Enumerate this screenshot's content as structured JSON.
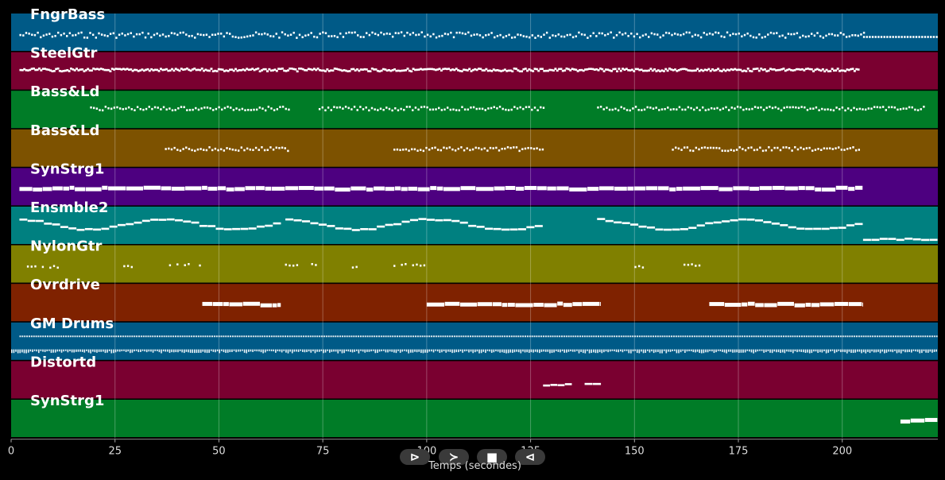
{
  "colors": {
    "blue": "#005a87",
    "crimson": "#7a0030",
    "green": "#007c27",
    "amber": "#7d5200",
    "purple": "#4d0080",
    "teal": "#008080",
    "olive": "#808000",
    "rust": "#7f2200",
    "background": "#000000",
    "note": "#ffffff"
  },
  "controls": {
    "play": "⊳",
    "forward": "≻",
    "stop": "■",
    "back": "⊲"
  },
  "chart_data": {
    "type": "piano-roll",
    "xlabel": "Temps (secondes)",
    "xlim": [
      0,
      223
    ],
    "xticks": [
      0,
      25,
      50,
      75,
      100,
      125,
      150,
      175,
      200
    ],
    "grid": true,
    "tracks": [
      {
        "name": "FngrBass",
        "color": "blue",
        "style": "dotted",
        "segments": [
          [
            2,
            205,
            0.55,
            0.3
          ],
          [
            205,
            223,
            0.6,
            0
          ]
        ],
        "row2": null
      },
      {
        "name": "SteelGtr",
        "color": "crimson",
        "style": "dense",
        "segments": [
          [
            2,
            204,
            0.45,
            0.15
          ]
        ],
        "row2": null
      },
      {
        "name": "Bass&Ld",
        "color": "green",
        "style": "dotted",
        "segments": [
          [
            19,
            67,
            0.45,
            0.2
          ],
          [
            74,
            128,
            0.45,
            0.2
          ],
          [
            141,
            220,
            0.45,
            0.2
          ]
        ],
        "row2": null
      },
      {
        "name": "Bass&Ld",
        "color": "amber",
        "style": "dotted",
        "segments": [
          [
            37,
            67,
            0.5,
            0.2
          ],
          [
            92,
            128,
            0.5,
            0.2
          ],
          [
            159,
            204,
            0.5,
            0.2
          ]
        ],
        "row2": null
      },
      {
        "name": "SynStrg1",
        "color": "purple",
        "style": "thick",
        "segments": [
          [
            2,
            205,
            0.5,
            0.1
          ]
        ],
        "row2": null
      },
      {
        "name": "Ensmble2",
        "color": "teal",
        "style": "line",
        "segments": [
          [
            2,
            65,
            0.45,
            0.55
          ],
          [
            66,
            128,
            0.45,
            0.55
          ],
          [
            141,
            205,
            0.45,
            0.55
          ],
          [
            205,
            223,
            0.85,
            0
          ]
        ],
        "row2": null
      },
      {
        "name": "NylonGtr",
        "color": "olive",
        "style": "sparse",
        "segments": [
          [
            2,
            12,
            0.55,
            0.1
          ],
          [
            27,
            30,
            0.55,
            0.1
          ],
          [
            38,
            46,
            0.5,
            0.1
          ],
          [
            65,
            74,
            0.5,
            0.1
          ],
          [
            82,
            84,
            0.55,
            0.1
          ],
          [
            92,
            100,
            0.5,
            0.1
          ],
          [
            150,
            152,
            0.55,
            0.1
          ],
          [
            160,
            168,
            0.5,
            0.1
          ]
        ],
        "row2": null
      },
      {
        "name": "Ovrdrive",
        "color": "rust",
        "style": "thick",
        "segments": [
          [
            46,
            65,
            0.5,
            0.1
          ],
          [
            100,
            142,
            0.5,
            0.1
          ],
          [
            168,
            205,
            0.5,
            0.1
          ]
        ],
        "row2": null
      },
      {
        "name": "GM Drums",
        "color": "blue",
        "style": "drums",
        "segments": [
          [
            2,
            223,
            0.35,
            0
          ]
        ],
        "row2": [
          0,
          223,
          0.72
        ]
      },
      {
        "name": "Distortd",
        "color": "crimson",
        "style": "line",
        "segments": [
          [
            128,
            135,
            0.62,
            0.1
          ],
          [
            138,
            142,
            0.58,
            0
          ]
        ],
        "row2": null
      },
      {
        "name": "SynStrg1",
        "color": "green",
        "style": "thick",
        "segments": [
          [
            214,
            223,
            0.5,
            0.15
          ]
        ],
        "row2": null
      }
    ]
  }
}
